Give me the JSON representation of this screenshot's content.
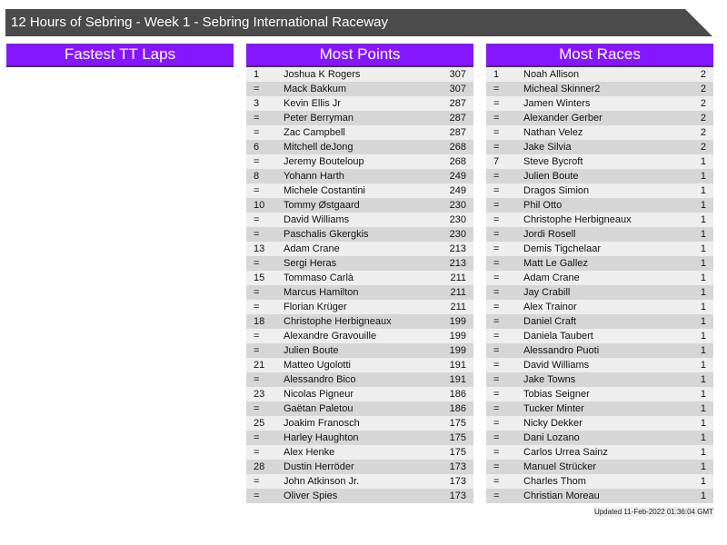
{
  "header": {
    "title": "12 Hours of Sebring - Week 1 - Sebring International Raceway"
  },
  "panels": {
    "fastest_tt": {
      "title": "Fastest TT Laps",
      "rows": []
    },
    "most_points": {
      "title": "Most Points",
      "rows": [
        [
          "1",
          "Joshua K Rogers",
          "307"
        ],
        [
          "=",
          "Mack Bakkum",
          "307"
        ],
        [
          "3",
          "Kevin Ellis Jr",
          "287"
        ],
        [
          "=",
          "Peter Berryman",
          "287"
        ],
        [
          "=",
          "Zac Campbell",
          "287"
        ],
        [
          "6",
          "Mitchell deJong",
          "268"
        ],
        [
          "=",
          "Jeremy Bouteloup",
          "268"
        ],
        [
          "8",
          "Yohann Harth",
          "249"
        ],
        [
          "=",
          "Michele Costantini",
          "249"
        ],
        [
          "10",
          "Tommy Østgaard",
          "230"
        ],
        [
          "=",
          "David Williams",
          "230"
        ],
        [
          "=",
          "Paschalis Gkergkis",
          "230"
        ],
        [
          "13",
          "Adam Crane",
          "213"
        ],
        [
          "=",
          "Sergi Heras",
          "213"
        ],
        [
          "15",
          "Tommaso Carlà",
          "211"
        ],
        [
          "=",
          "Marcus Hamilton",
          "211"
        ],
        [
          "=",
          "Florian Krüger",
          "211"
        ],
        [
          "18",
          "Christophe Herbigneaux",
          "199"
        ],
        [
          "=",
          "Alexandre Gravouille",
          "199"
        ],
        [
          "=",
          "Julien Boute",
          "199"
        ],
        [
          "21",
          "Matteo Ugolotti",
          "191"
        ],
        [
          "=",
          "Alessandro Bico",
          "191"
        ],
        [
          "23",
          "Nicolas Pigneur",
          "186"
        ],
        [
          "=",
          "Gaëtan Paletou",
          "186"
        ],
        [
          "25",
          "Joakim Franosch",
          "175"
        ],
        [
          "=",
          "Harley Haughton",
          "175"
        ],
        [
          "=",
          "Alex Henke",
          "175"
        ],
        [
          "28",
          "Dustin Herröder",
          "173"
        ],
        [
          "=",
          "John Atkinson Jr.",
          "173"
        ],
        [
          "=",
          "Oliver Spies",
          "173"
        ]
      ]
    },
    "most_races": {
      "title": "Most Races",
      "rows": [
        [
          "1",
          "Noah Allison",
          "2"
        ],
        [
          "=",
          "Micheal Skinner2",
          "2"
        ],
        [
          "=",
          "Jamen Winters",
          "2"
        ],
        [
          "=",
          "Alexander Gerber",
          "2"
        ],
        [
          "=",
          "Nathan Velez",
          "2"
        ],
        [
          "=",
          "Jake Silvia",
          "2"
        ],
        [
          "7",
          "Steve Bycroft",
          "1"
        ],
        [
          "=",
          "Julien Boute",
          "1"
        ],
        [
          "=",
          "Dragos Simion",
          "1"
        ],
        [
          "=",
          "Phil Otto",
          "1"
        ],
        [
          "=",
          "Christophe Herbigneaux",
          "1"
        ],
        [
          "=",
          "Jordi Rosell",
          "1"
        ],
        [
          "=",
          "Demis Tigchelaar",
          "1"
        ],
        [
          "=",
          "Matt Le Gallez",
          "1"
        ],
        [
          "=",
          "Adam Crane",
          "1"
        ],
        [
          "=",
          "Jay Crabill",
          "1"
        ],
        [
          "=",
          "Alex Trainor",
          "1"
        ],
        [
          "=",
          "Daniel Craft",
          "1"
        ],
        [
          "=",
          "Daniela Taubert",
          "1"
        ],
        [
          "=",
          "Alessandro Puoti",
          "1"
        ],
        [
          "=",
          "David Williams",
          "1"
        ],
        [
          "=",
          "Jake Towns",
          "1"
        ],
        [
          "=",
          "Tobias Seigner",
          "1"
        ],
        [
          "=",
          "Tucker Minter",
          "1"
        ],
        [
          "=",
          "Nicky Dekker",
          "1"
        ],
        [
          "=",
          "Dani Lozano",
          "1"
        ],
        [
          "=",
          "Carlos Urrea Sainz",
          "1"
        ],
        [
          "=",
          "Manuel Strücker",
          "1"
        ],
        [
          "=",
          "Charles Thom",
          "1"
        ],
        [
          "=",
          "Christian Moreau",
          "1"
        ]
      ]
    }
  },
  "footer": {
    "updated": "Updated 11-Feb-2022 01:36:04 GMT"
  },
  "colors": {
    "panel_header": "#8517ff",
    "title_bar": "#4b4b4b",
    "row_light": "#eeeeee",
    "row_dark": "#d6d6d6"
  }
}
